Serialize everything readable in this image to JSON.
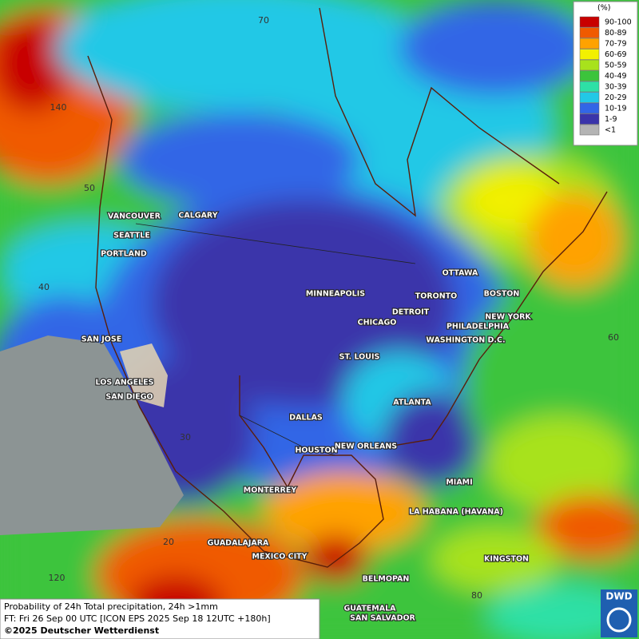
{
  "legend": {
    "title": "(%)",
    "items": [
      {
        "label": "90-100",
        "color": "#c80000"
      },
      {
        "label": "80-89",
        "color": "#f05a00"
      },
      {
        "label": "70-79",
        "color": "#ffa200"
      },
      {
        "label": "60-69",
        "color": "#f2f000"
      },
      {
        "label": "50-59",
        "color": "#a8e21c"
      },
      {
        "label": "40-49",
        "color": "#3cc43c"
      },
      {
        "label": "30-39",
        "color": "#2ee0a6"
      },
      {
        "label": "20-29",
        "color": "#22c8e6"
      },
      {
        "label": "10-19",
        "color": "#3266e6"
      },
      {
        "label": "1-9",
        "color": "#3a34aa"
      },
      {
        "label": "<1",
        "color": "#b4b4b4"
      }
    ]
  },
  "grid_labels": [
    "140",
    "50",
    "40",
    "70",
    "60",
    "30",
    "20",
    "120",
    "80"
  ],
  "cities": [
    "VANCOUVER",
    "CALGARY",
    "SEATTLE",
    "PORTLAND",
    "MINNEAPOLIS",
    "TORONTO",
    "OTTAWA",
    "DETROIT",
    "CHICAGO",
    "BOSTON",
    "NEW YORK",
    "PHILADELPHIA",
    "WASHINGTON D.C.",
    "SAN JOSE",
    "ST. LOUIS",
    "LOS ANGELES",
    "SAN DIEGO",
    "ATLANTA",
    "DALLAS",
    "HOUSTON",
    "NEW ORLEANS",
    "MIAMI",
    "MONTERREY",
    "LA HABANA (HAVANA)",
    "GUADALAJARA",
    "MEXICO CITY",
    "KINGSTON",
    "BELMOPAN",
    "GUATEMALA",
    "SAN SALVADOR"
  ],
  "footer": {
    "title": "Probability of 24h Total precipitation, 24h >1mm",
    "forecast": "FT: Fri 26 Sep 00 UTC [ICON EPS 2025 Sep 18 12UTC +180h]",
    "copyright": "©2025 Deutscher Wetterdienst"
  },
  "logo": "DWD"
}
